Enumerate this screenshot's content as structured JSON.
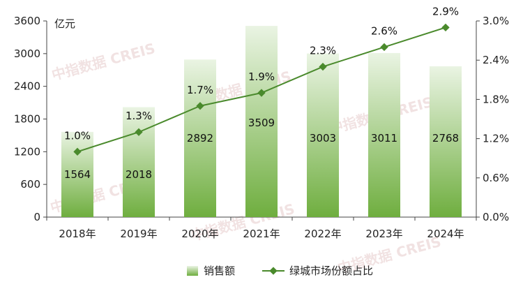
{
  "chart_data": {
    "type": "bar+line",
    "categories": [
      "2018年",
      "2019年",
      "2020年",
      "2021年",
      "2022年",
      "2023年",
      "2024年"
    ],
    "series": [
      {
        "name": "销售额",
        "type": "bar",
        "axis": "left",
        "values": [
          1564,
          2018,
          2892,
          3509,
          3003,
          3011,
          2768
        ],
        "labels": [
          "1564",
          "2018",
          "2892",
          "3509",
          "3003",
          "3011",
          "2768"
        ]
      },
      {
        "name": "绿城市场份额占比",
        "type": "line",
        "axis": "right",
        "values": [
          1.0,
          1.3,
          1.7,
          1.9,
          2.3,
          2.6,
          2.9
        ],
        "labels": [
          "1.0%",
          "1.3%",
          "1.7%",
          "1.9%",
          "2.3%",
          "2.6%",
          "2.9%"
        ]
      }
    ],
    "y_left": {
      "unit": "亿元",
      "range": [
        0,
        3600
      ],
      "ticks": [
        0,
        600,
        1200,
        1800,
        2400,
        3000,
        3600
      ],
      "tick_labels": [
        "0",
        "600",
        "1200",
        "1800",
        "2400",
        "3000",
        "3600"
      ]
    },
    "y_right": {
      "range": [
        0,
        3.0
      ],
      "ticks": [
        0,
        0.6,
        1.2,
        1.8,
        2.4,
        3.0
      ],
      "tick_labels": [
        "0.0%",
        "0.6%",
        "1.2%",
        "1.8%",
        "2.4%",
        "3.0%"
      ]
    },
    "grid": false,
    "legend_position": "bottom",
    "colors": {
      "bar_top": "#eaf4e3",
      "bar_bottom": "#6fae3f",
      "line": "#4a8a2c",
      "marker": "#4a8a2c",
      "axis": "#444444"
    },
    "watermark": "中指数据 CREIS"
  }
}
